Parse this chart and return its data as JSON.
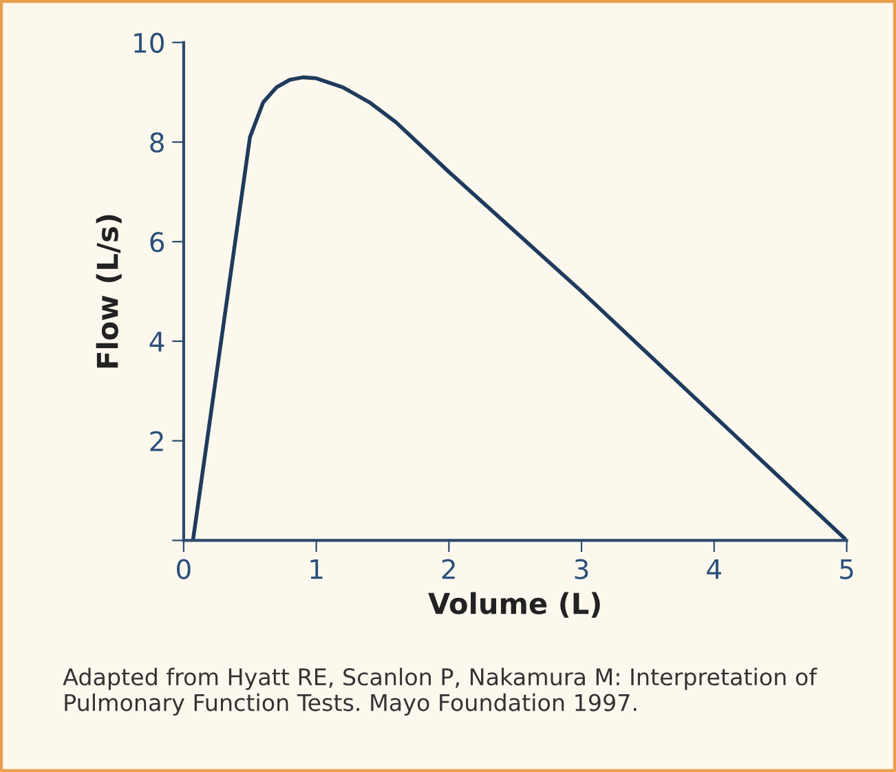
{
  "chart_data": {
    "type": "line",
    "xlabel": "Volume (L)",
    "ylabel": "Flow (L/s)",
    "x": [
      0.07,
      0.5,
      0.6,
      0.7,
      0.8,
      0.9,
      1.0,
      1.2,
      1.4,
      1.6,
      2,
      3,
      4,
      5
    ],
    "series": [
      {
        "color": "#1f3b5c",
        "values": [
          0,
          8.1,
          8.8,
          9.1,
          9.25,
          9.3,
          9.28,
          9.1,
          8.8,
          8.4,
          7.4,
          5.0,
          2.5,
          0
        ]
      }
    ],
    "xlim": [
      0,
      5
    ],
    "ylim": [
      0,
      10
    ],
    "xticks": [
      0,
      1,
      2,
      3,
      4,
      5
    ],
    "yticks": [
      {
        "value": 0,
        "label": null
      },
      2,
      4,
      6,
      8,
      10
    ],
    "grid": false,
    "marker": "none",
    "line_style": "solid",
    "annotations": [
      "Adapted from Hyatt RE, Scanlon P, Nakamura M: Interpretation of Pulmonary Function Tests. Mayo Foundation 1997."
    ]
  }
}
